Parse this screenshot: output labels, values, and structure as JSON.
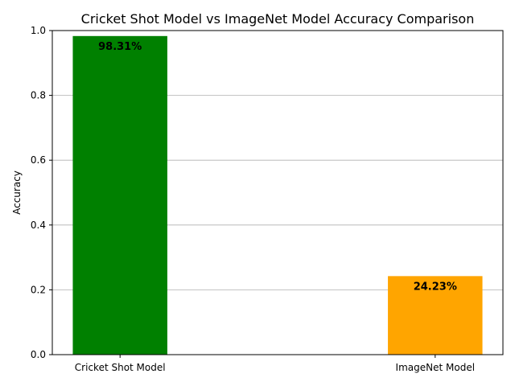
{
  "chart_data": {
    "type": "bar",
    "title": "Cricket Shot Model vs ImageNet Model Accuracy Comparison",
    "xlabel": "",
    "ylabel": "Accuracy",
    "categories": [
      "Cricket Shot Model",
      "ImageNet Model"
    ],
    "values": [
      0.9831,
      0.2423
    ],
    "data_labels": [
      "98.31%",
      "24.23%"
    ],
    "colors": [
      "#008000",
      "#FFA500"
    ],
    "ylim": [
      0,
      1.0
    ],
    "yticks": [
      0.0,
      0.2,
      0.4,
      0.6,
      0.8,
      1.0
    ],
    "ytick_labels": [
      "0.0",
      "0.2",
      "0.4",
      "0.6",
      "0.8",
      "1.0"
    ],
    "grid": "y-axis horizontal lines",
    "legend": "none"
  }
}
